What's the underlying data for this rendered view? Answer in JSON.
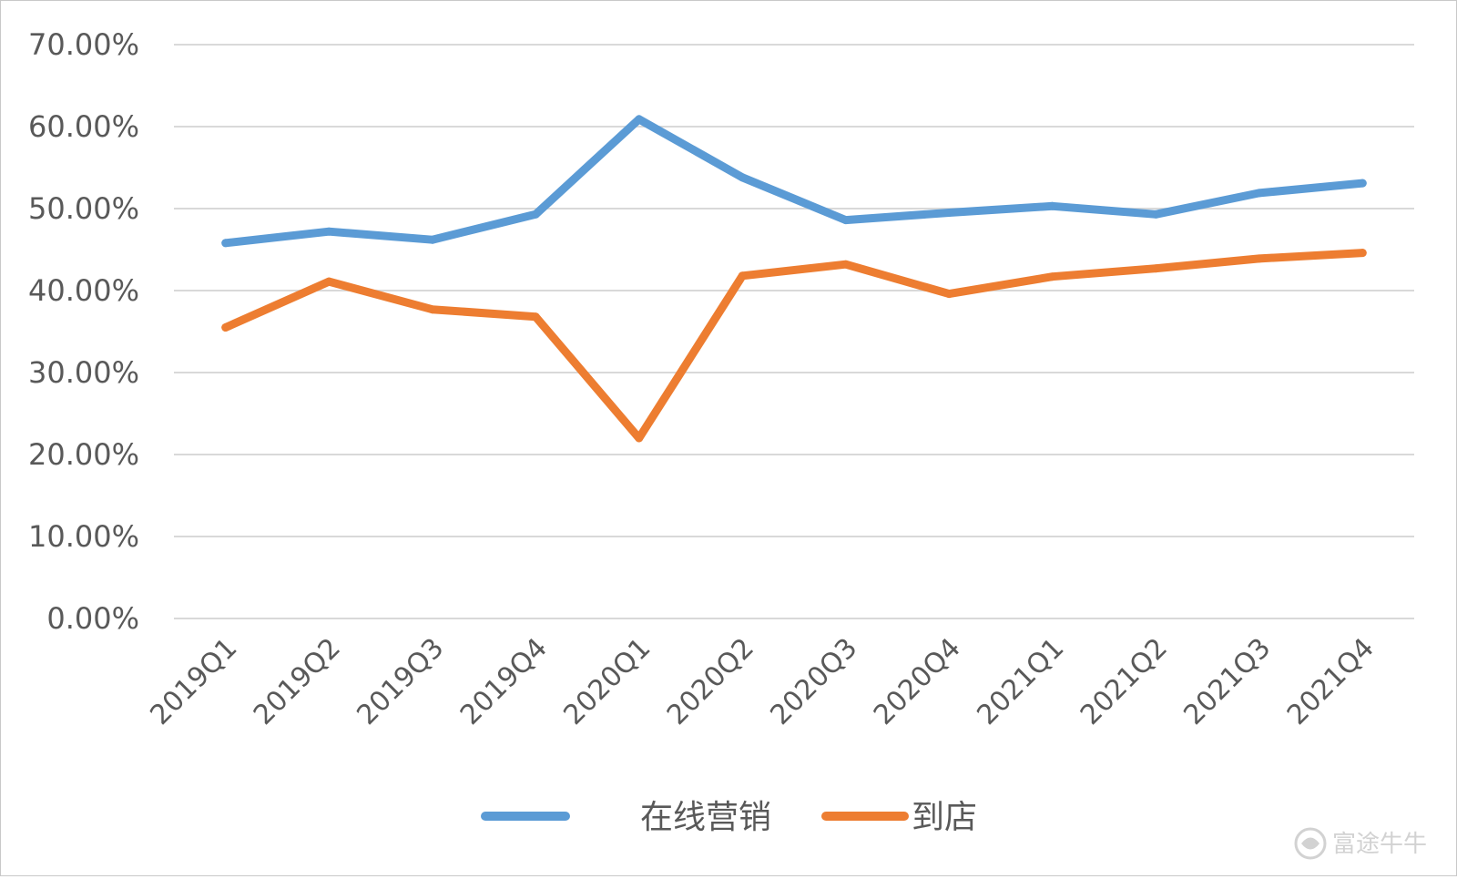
{
  "chart_data": {
    "type": "line",
    "categories": [
      "2019Q1",
      "2019Q2",
      "2019Q3",
      "2019Q4",
      "2020Q1",
      "2020Q2",
      "2020Q3",
      "2020Q4",
      "2021Q1",
      "2021Q2",
      "2021Q3",
      "2021Q4"
    ],
    "series": [
      {
        "name": "在线营销",
        "color": "#5B9BD5",
        "values": [
          45.8,
          47.2,
          46.2,
          49.3,
          60.9,
          53.8,
          48.6,
          49.5,
          50.3,
          49.3,
          51.9,
          53.1
        ]
      },
      {
        "name": "到店",
        "color": "#ED7D31",
        "values": [
          35.5,
          41.1,
          37.7,
          36.8,
          22.0,
          41.8,
          43.2,
          39.6,
          41.7,
          42.7,
          43.9,
          44.6
        ]
      }
    ],
    "title": "",
    "xlabel": "",
    "ylabel": "",
    "ylim": [
      0,
      70
    ],
    "yticks": [
      "0.00%",
      "10.00%",
      "20.00%",
      "30.00%",
      "40.00%",
      "50.00%",
      "60.00%",
      "70.00%"
    ],
    "grid": true,
    "legend_position": "bottom"
  },
  "watermark": {
    "text": "富途牛牛",
    "icon": "futu-logo-icon"
  }
}
